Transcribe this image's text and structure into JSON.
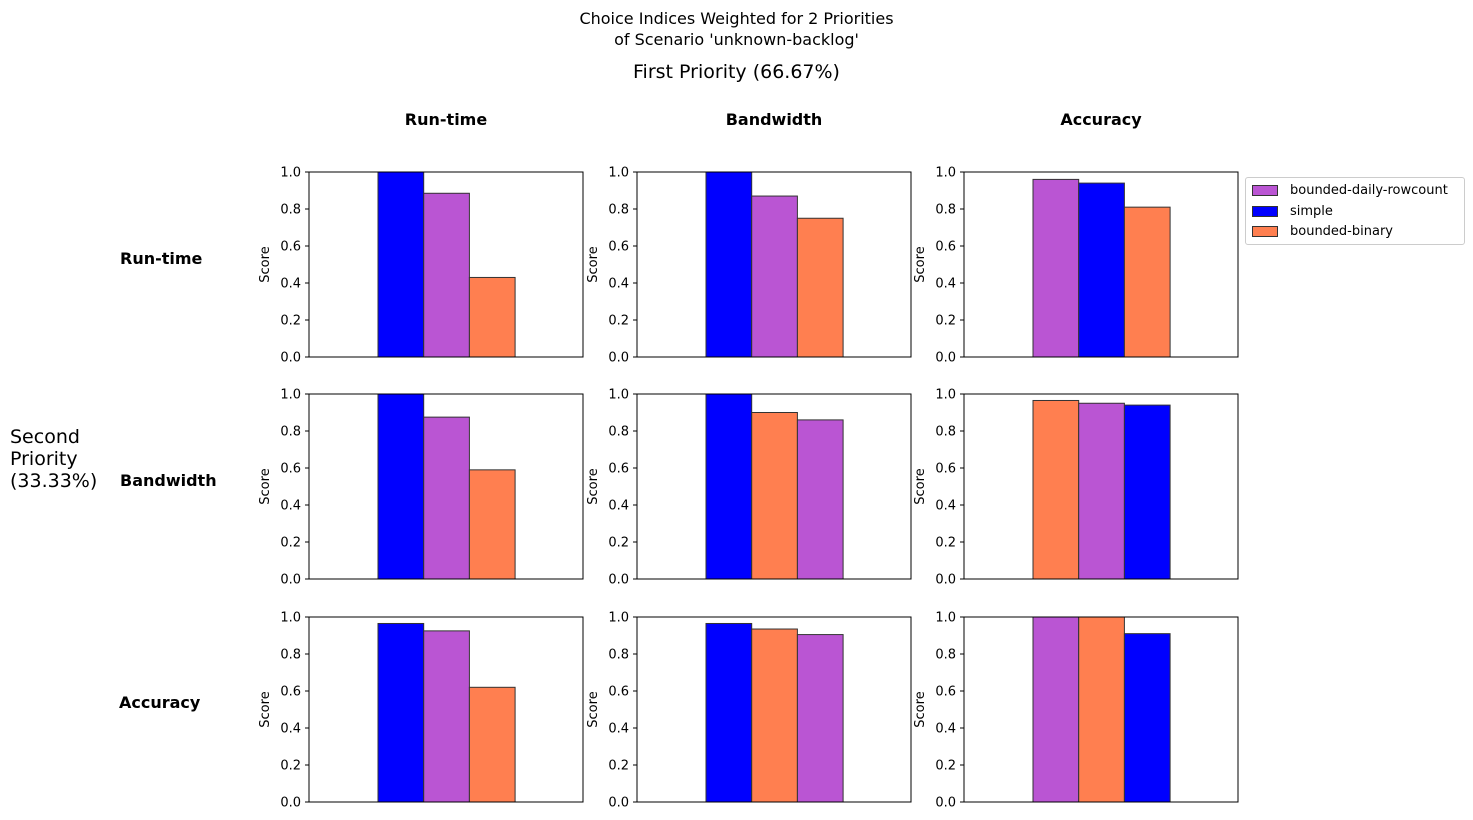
{
  "figure": {
    "title_line1": "Choice Indices Weighted for 2 Priorities",
    "title_line2": "of Scenario 'unknown-backlog'",
    "first_priority": "First Priority (66.67%)",
    "second_priority": "Second\nPriority\n(33.33%)",
    "column_headers": [
      "Run-time",
      "Bandwidth",
      "Accuracy"
    ],
    "row_headers": [
      "Run-time",
      "Bandwidth",
      "Accuracy"
    ]
  },
  "colors": {
    "bounded-daily-rowcount": "#ba55d3",
    "simple": "#0000ff",
    "bounded-binary": "#ff7f50"
  },
  "legend": {
    "entries": [
      "bounded-daily-rowcount",
      "simple",
      "bounded-binary"
    ]
  },
  "chart_data": [
    {
      "type": "bar",
      "row": "Run-time",
      "col": "Run-time",
      "ylabel": "Score",
      "ylim": [
        0,
        1
      ],
      "yticks": [
        "0.0",
        "0.2",
        "0.4",
        "0.6",
        "0.8",
        "1.0"
      ],
      "bars": [
        {
          "name": "simple",
          "value": 1.0
        },
        {
          "name": "bounded-daily-rowcount",
          "value": 0.885
        },
        {
          "name": "bounded-binary",
          "value": 0.43
        }
      ]
    },
    {
      "type": "bar",
      "row": "Run-time",
      "col": "Bandwidth",
      "ylabel": "Score",
      "ylim": [
        0,
        1
      ],
      "yticks": [
        "0.0",
        "0.2",
        "0.4",
        "0.6",
        "0.8",
        "1.0"
      ],
      "bars": [
        {
          "name": "simple",
          "value": 1.0
        },
        {
          "name": "bounded-daily-rowcount",
          "value": 0.87
        },
        {
          "name": "bounded-binary",
          "value": 0.75
        }
      ]
    },
    {
      "type": "bar",
      "row": "Run-time",
      "col": "Accuracy",
      "ylabel": "Score",
      "ylim": [
        0,
        1
      ],
      "yticks": [
        "0.0",
        "0.2",
        "0.4",
        "0.6",
        "0.8",
        "1.0"
      ],
      "bars": [
        {
          "name": "bounded-daily-rowcount",
          "value": 0.96
        },
        {
          "name": "simple",
          "value": 0.94
        },
        {
          "name": "bounded-binary",
          "value": 0.81
        }
      ]
    },
    {
      "type": "bar",
      "row": "Bandwidth",
      "col": "Run-time",
      "ylabel": "Score",
      "ylim": [
        0,
        1
      ],
      "yticks": [
        "0.0",
        "0.2",
        "0.4",
        "0.6",
        "0.8",
        "1.0"
      ],
      "bars": [
        {
          "name": "simple",
          "value": 1.0
        },
        {
          "name": "bounded-daily-rowcount",
          "value": 0.875
        },
        {
          "name": "bounded-binary",
          "value": 0.59
        }
      ]
    },
    {
      "type": "bar",
      "row": "Bandwidth",
      "col": "Bandwidth",
      "ylabel": "Score",
      "ylim": [
        0,
        1
      ],
      "yticks": [
        "0.0",
        "0.2",
        "0.4",
        "0.6",
        "0.8",
        "1.0"
      ],
      "bars": [
        {
          "name": "simple",
          "value": 1.0
        },
        {
          "name": "bounded-binary",
          "value": 0.9
        },
        {
          "name": "bounded-daily-rowcount",
          "value": 0.86
        }
      ]
    },
    {
      "type": "bar",
      "row": "Bandwidth",
      "col": "Accuracy",
      "ylabel": "Score",
      "ylim": [
        0,
        1
      ],
      "yticks": [
        "0.0",
        "0.2",
        "0.4",
        "0.6",
        "0.8",
        "1.0"
      ],
      "bars": [
        {
          "name": "bounded-binary",
          "value": 0.965
        },
        {
          "name": "bounded-daily-rowcount",
          "value": 0.95
        },
        {
          "name": "simple",
          "value": 0.94
        }
      ]
    },
    {
      "type": "bar",
      "row": "Accuracy",
      "col": "Run-time",
      "ylabel": "Score",
      "ylim": [
        0,
        1
      ],
      "yticks": [
        "0.0",
        "0.2",
        "0.4",
        "0.6",
        "0.8",
        "1.0"
      ],
      "bars": [
        {
          "name": "simple",
          "value": 0.965
        },
        {
          "name": "bounded-daily-rowcount",
          "value": 0.925
        },
        {
          "name": "bounded-binary",
          "value": 0.62
        }
      ]
    },
    {
      "type": "bar",
      "row": "Accuracy",
      "col": "Bandwidth",
      "ylabel": "Score",
      "ylim": [
        0,
        1
      ],
      "yticks": [
        "0.0",
        "0.2",
        "0.4",
        "0.6",
        "0.8",
        "1.0"
      ],
      "bars": [
        {
          "name": "simple",
          "value": 0.965
        },
        {
          "name": "bounded-binary",
          "value": 0.935
        },
        {
          "name": "bounded-daily-rowcount",
          "value": 0.905
        }
      ]
    },
    {
      "type": "bar",
      "row": "Accuracy",
      "col": "Accuracy",
      "ylabel": "Score",
      "ylim": [
        0,
        1
      ],
      "yticks": [
        "0.0",
        "0.2",
        "0.4",
        "0.6",
        "0.8",
        "1.0"
      ],
      "bars": [
        {
          "name": "bounded-daily-rowcount",
          "value": 1.0
        },
        {
          "name": "bounded-binary",
          "value": 1.0
        },
        {
          "name": "simple",
          "value": 0.91
        }
      ]
    }
  ]
}
